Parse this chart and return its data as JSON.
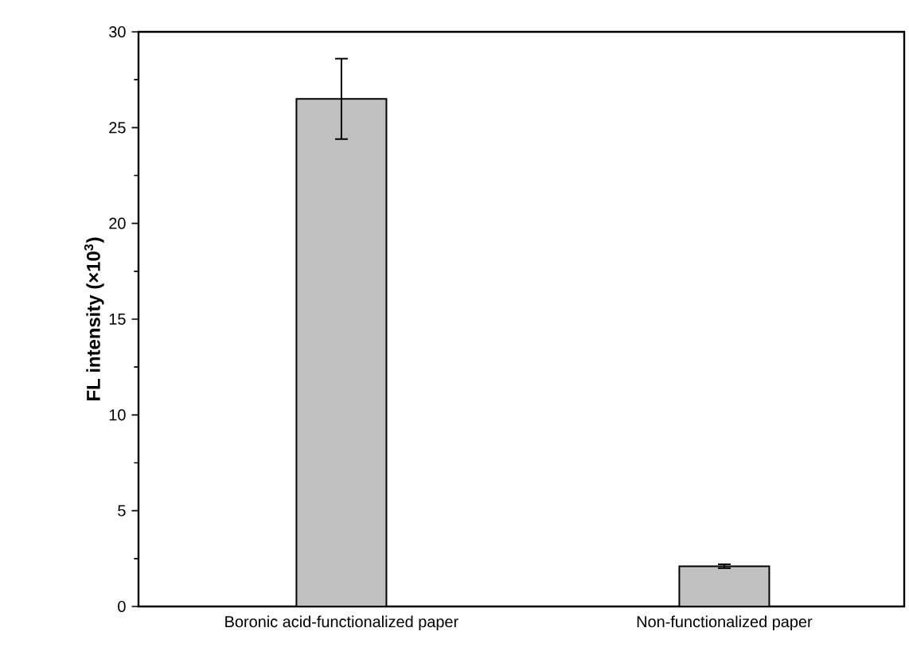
{
  "chart_data": {
    "type": "bar",
    "ylabel": "FL intensity (×10$^{3}$)",
    "categories": [
      "Boronic acid-functionalized paper",
      "Non-functionalized paper"
    ],
    "values": [
      26.5,
      2.1
    ],
    "errors": [
      2.1,
      0.1
    ],
    "color": "#c0c0c0",
    "ylim": [
      0,
      30
    ],
    "yticks": [
      0,
      5,
      10,
      15,
      20,
      25,
      30
    ],
    "grid": false
  }
}
